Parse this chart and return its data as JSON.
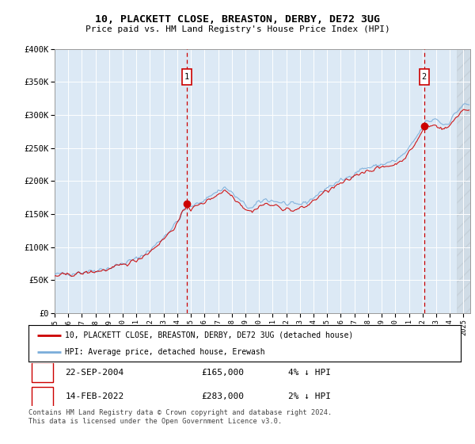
{
  "title": "10, PLACKETT CLOSE, BREASTON, DERBY, DE72 3UG",
  "subtitle": "Price paid vs. HM Land Registry's House Price Index (HPI)",
  "legend_line1": "10, PLACKETT CLOSE, BREASTON, DERBY, DE72 3UG (detached house)",
  "legend_line2": "HPI: Average price, detached house, Erewash",
  "footnote": "Contains HM Land Registry data © Crown copyright and database right 2024.\nThis data is licensed under the Open Government Licence v3.0.",
  "table": [
    {
      "num": "1",
      "date": "22-SEP-2004",
      "price": "£165,000",
      "hpi": "4% ↓ HPI"
    },
    {
      "num": "2",
      "date": "14-FEB-2022",
      "price": "£283,000",
      "hpi": "2% ↓ HPI"
    }
  ],
  "ylim": [
    0,
    400000
  ],
  "yticks": [
    0,
    50000,
    100000,
    150000,
    200000,
    250000,
    300000,
    350000,
    400000
  ],
  "ytick_labels": [
    "£0",
    "£50K",
    "£100K",
    "£150K",
    "£200K",
    "£250K",
    "£300K",
    "£350K",
    "£400K"
  ],
  "xmin": 1995.0,
  "xmax": 2025.5,
  "plot_bg": "#dce9f5",
  "line_color_red": "#cc0000",
  "line_color_blue": "#7aadda",
  "marker1_x": 2004.72,
  "marker1_y": 165000,
  "marker2_x": 2022.12,
  "marker2_y": 283000,
  "hatch_x_start": 2024.5,
  "hatch_x_end": 2025.5
}
